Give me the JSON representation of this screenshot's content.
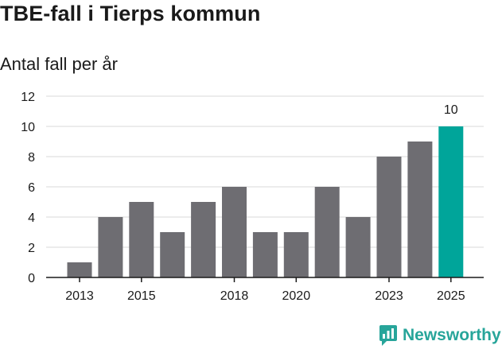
{
  "header": {
    "title": "TBE-fall i Tierps kommun",
    "subtitle": "Antal fall per år"
  },
  "brand": {
    "name": "Newsworthy",
    "icon": "newsworthy-logo-icon",
    "color": "#27a59a"
  },
  "chart_data": {
    "type": "bar",
    "title": "TBE-fall i Tierps kommun",
    "subtitle": "Antal fall per år",
    "xlabel": "",
    "ylabel": "",
    "categories": [
      "2013",
      "2014",
      "2015",
      "2016",
      "2017",
      "2018",
      "2019",
      "2020",
      "2021",
      "2022",
      "2023",
      "2024",
      "2025"
    ],
    "values": [
      1,
      4,
      5,
      3,
      5,
      6,
      3,
      3,
      6,
      4,
      8,
      9,
      10
    ],
    "x_tick_labels": [
      "2013",
      "2015",
      "2018",
      "2020",
      "2023",
      "2025"
    ],
    "y_ticks": [
      0,
      2,
      4,
      6,
      8,
      10,
      12
    ],
    "y_tick_labels": [
      "0",
      "2",
      "4",
      "6",
      "8",
      "10",
      "12"
    ],
    "ylim": [
      0,
      12
    ],
    "grid": true,
    "bar_color": "#6e6d72",
    "highlight_index": 12,
    "highlight_color": "#00a59a",
    "highlight_label": "10"
  }
}
